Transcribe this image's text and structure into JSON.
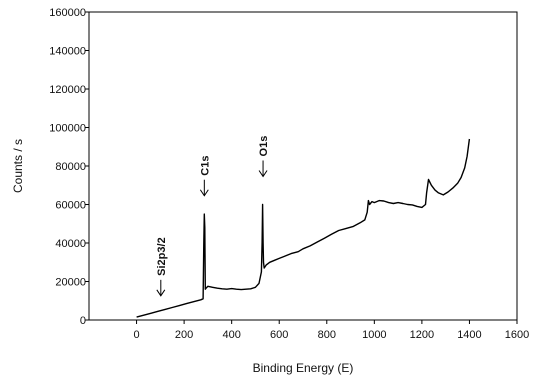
{
  "chart_data": {
    "type": "line",
    "xlabel": "Binding Energy (E)",
    "ylabel": "Counts / s",
    "xlim": [
      -200,
      1600
    ],
    "ylim": [
      0,
      160000
    ],
    "xticks": [
      "0",
      "200",
      "400",
      "600",
      "800",
      "1000",
      "1200",
      "1400",
      "1600"
    ],
    "yticks": [
      "0",
      "20000",
      "40000",
      "60000",
      "80000",
      "100000",
      "120000",
      "140000",
      "160000"
    ],
    "grid": false,
    "series": [
      {
        "color": "#000000",
        "x": [
          0,
          30,
          60,
          90,
          120,
          150,
          180,
          210,
          240,
          270,
          280,
          283,
          285,
          287,
          289,
          292,
          300,
          320,
          340,
          360,
          380,
          400,
          420,
          440,
          460,
          480,
          500,
          515,
          525,
          528,
          530,
          532,
          534,
          537,
          545,
          560,
          580,
          600,
          620,
          650,
          680,
          700,
          730,
          760,
          790,
          820,
          850,
          880,
          910,
          940,
          960,
          970,
          975,
          980,
          990,
          1000,
          1020,
          1040,
          1060,
          1080,
          1100,
          1120,
          1140,
          1160,
          1180,
          1200,
          1215,
          1220,
          1228,
          1240,
          1255,
          1270,
          1290,
          1310,
          1330,
          1350,
          1365,
          1380,
          1390,
          1400
        ],
        "y": [
          1500,
          2500,
          3500,
          4500,
          5500,
          6500,
          7500,
          8500,
          9500,
          10500,
          11000,
          40000,
          55000,
          48000,
          16000,
          16500,
          17500,
          17000,
          16500,
          16200,
          16000,
          16300,
          16000,
          15800,
          16000,
          16200,
          17000,
          19000,
          25000,
          40000,
          60000,
          40000,
          30000,
          27000,
          28500,
          30000,
          31000,
          32000,
          33000,
          34500,
          35500,
          37000,
          38500,
          40500,
          42500,
          44500,
          46500,
          47500,
          48500,
          50500,
          52000,
          56000,
          62000,
          60000,
          61500,
          61000,
          62000,
          61800,
          61000,
          60500,
          61000,
          60500,
          60000,
          59800,
          59000,
          58500,
          60000,
          66000,
          73000,
          70000,
          67500,
          66000,
          65000,
          66500,
          68500,
          71000,
          74000,
          79000,
          85000,
          94000
        ]
      }
    ],
    "annotations": [
      {
        "label": "Si2p3/2",
        "x": 102,
        "y": 11000,
        "rotated": true
      },
      {
        "label": "C1s",
        "x": 285,
        "y": 63000,
        "rotated": true
      },
      {
        "label": "O1s",
        "x": 532,
        "y": 73000,
        "rotated": true
      }
    ]
  }
}
